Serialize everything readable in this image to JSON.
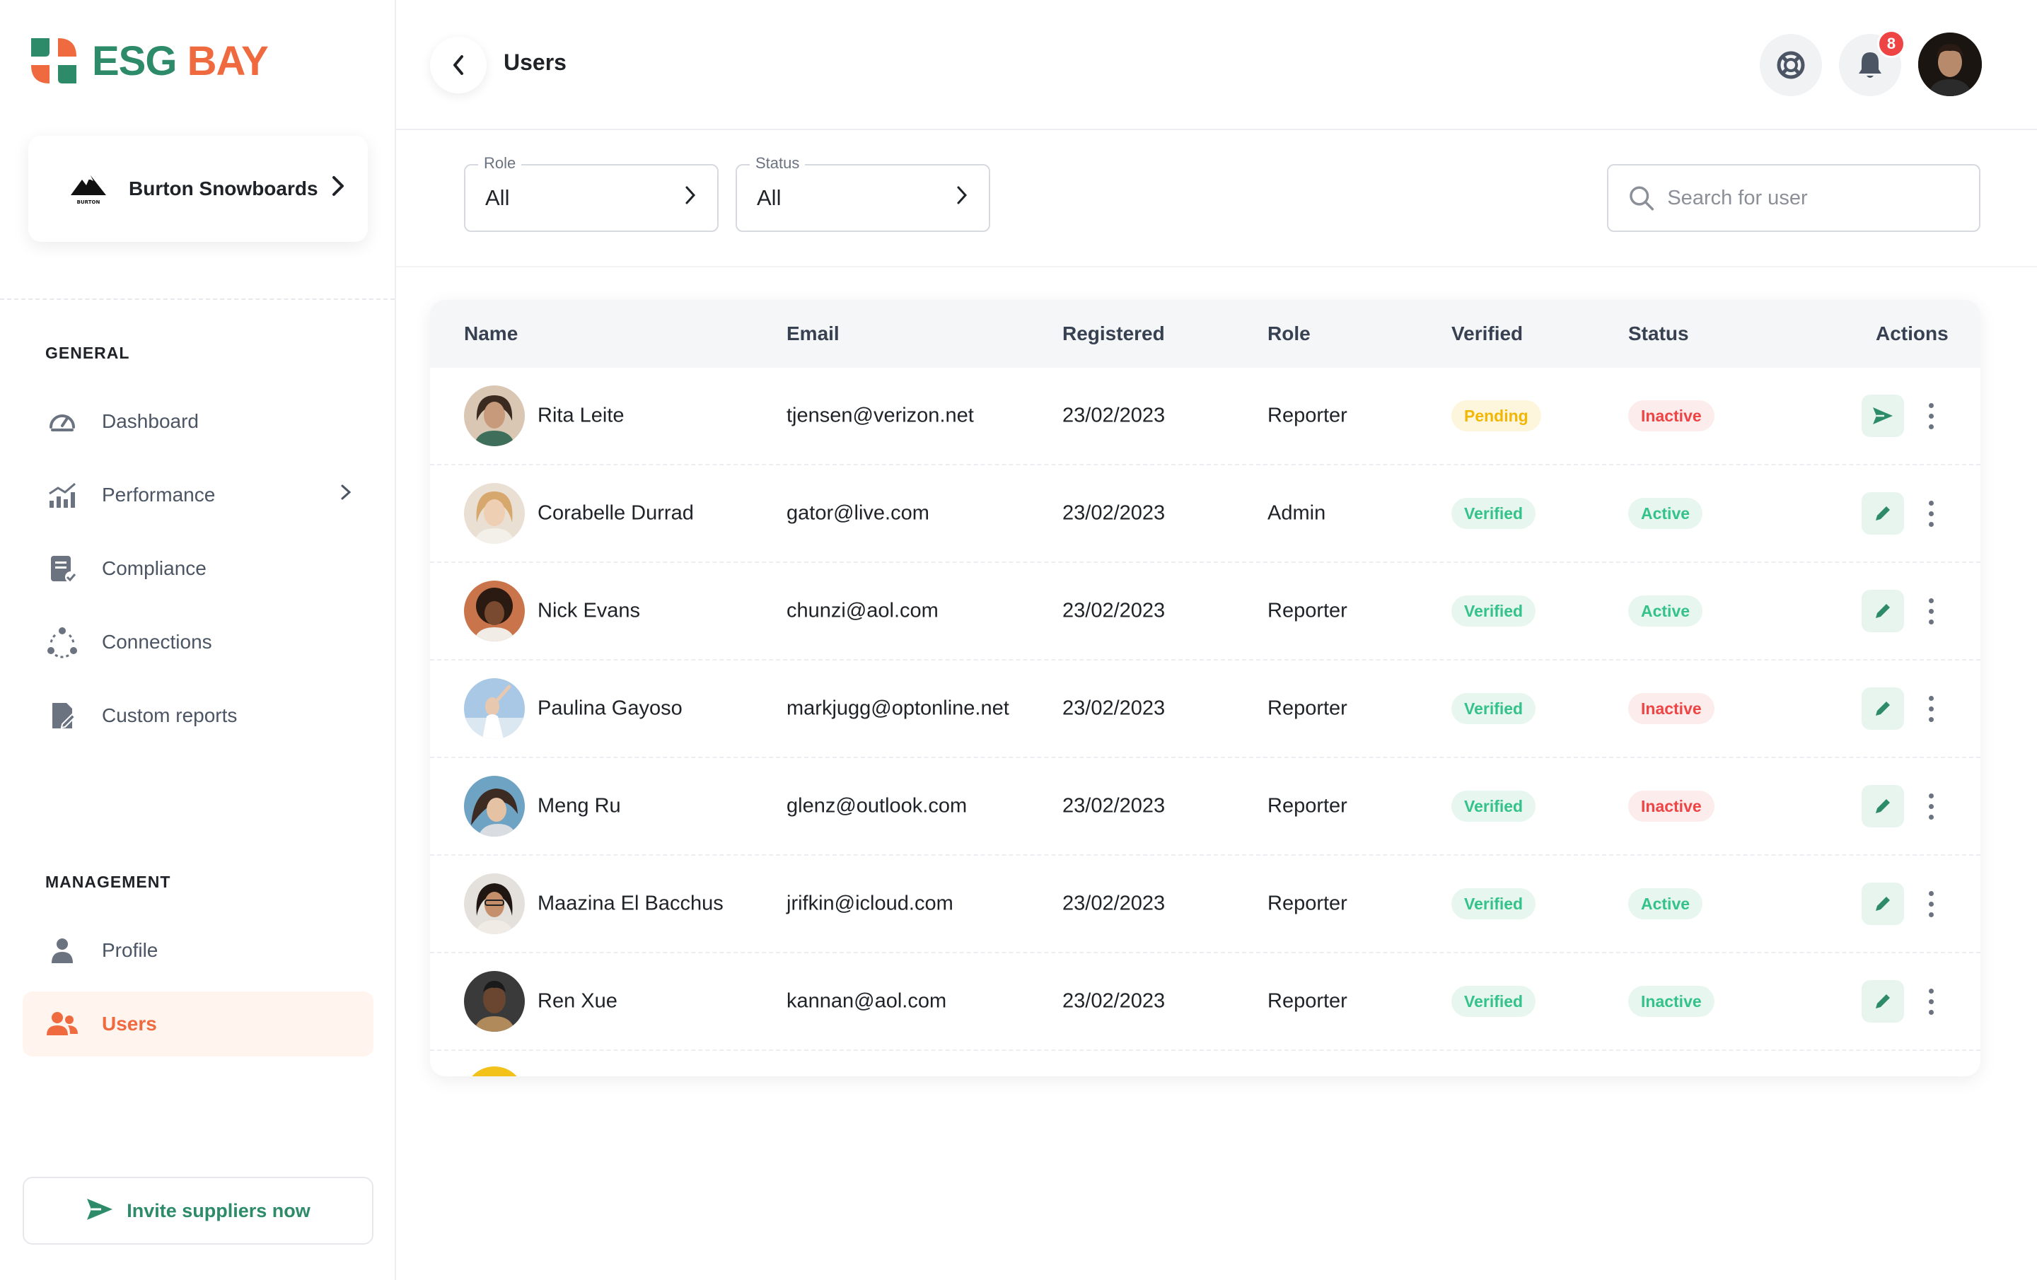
{
  "brand": {
    "name_part1": "ESG",
    "name_part2": "BAY",
    "orange": "#ef6b3f",
    "green": "#2e8b6a"
  },
  "org": {
    "name": "Burton Snowboards",
    "logo_text": "BURTON"
  },
  "sidebar": {
    "general_title": "GENERAL",
    "general_items": [
      {
        "label": "Dashboard",
        "icon": "gauge-icon"
      },
      {
        "label": "Performance",
        "icon": "bar-chart-icon",
        "has_submenu": true
      },
      {
        "label": "Compliance",
        "icon": "checklist-icon"
      },
      {
        "label": "Connections",
        "icon": "network-icon"
      },
      {
        "label": "Custom reports",
        "icon": "report-icon"
      }
    ],
    "management_title": "MANAGEMENT",
    "management_items": [
      {
        "label": "Profile",
        "icon": "user-icon"
      },
      {
        "label": "Users",
        "icon": "users-icon",
        "active": true
      }
    ],
    "invite_label": "Invite suppliers now"
  },
  "header": {
    "title": "Users",
    "notification_count": "8"
  },
  "filters": {
    "role": {
      "label": "Role",
      "value": "All"
    },
    "status": {
      "label": "Status",
      "value": "All"
    },
    "search_placeholder": "Search for user"
  },
  "table": {
    "columns": [
      "Name",
      "Email",
      "Registered",
      "Role",
      "Verified",
      "Status",
      "Actions"
    ],
    "rows": [
      {
        "name": "Rita Leite",
        "email": "tjensen@verizon.net",
        "registered": "23/02/2023",
        "role": "Reporter",
        "verified": "Pending",
        "status": "Inactive",
        "action": "send"
      },
      {
        "name": "Corabelle Durrad",
        "email": "gator@live.com",
        "registered": "23/02/2023",
        "role": "Admin",
        "verified": "Verified",
        "status": "Active",
        "action": "edit"
      },
      {
        "name": "Nick Evans",
        "email": "chunzi@aol.com",
        "registered": "23/02/2023",
        "role": "Reporter",
        "verified": "Verified",
        "status": "Active",
        "action": "edit"
      },
      {
        "name": "Paulina Gayoso",
        "email": "markjugg@optonline.net",
        "registered": "23/02/2023",
        "role": "Reporter",
        "verified": "Verified",
        "status": "Inactive",
        "action": "edit"
      },
      {
        "name": "Meng Ru",
        "email": "glenz@outlook.com",
        "registered": "23/02/2023",
        "role": "Reporter",
        "verified": "Verified",
        "status": "Inactive",
        "action": "edit"
      },
      {
        "name": "Maazina El Bacchus",
        "email": "jrifkin@icloud.com",
        "registered": "23/02/2023",
        "role": "Reporter",
        "verified": "Verified",
        "status": "Active",
        "action": "edit"
      },
      {
        "name": "Ren Xue",
        "email": "kannan@aol.com",
        "registered": "23/02/2023",
        "role": "Reporter",
        "verified": "Verified",
        "status": "Inactive",
        "action": "edit"
      }
    ]
  }
}
